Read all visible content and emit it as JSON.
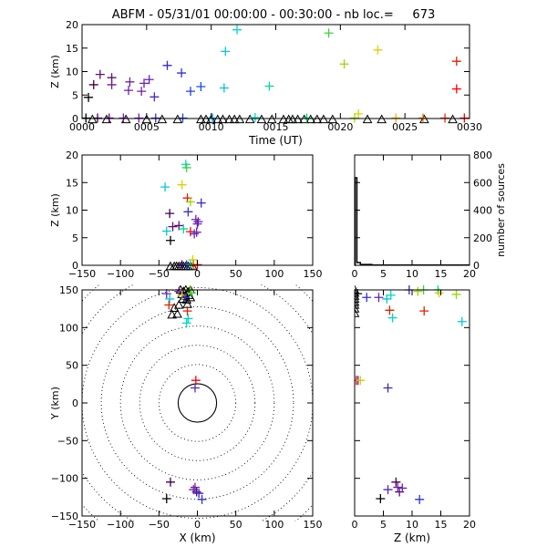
{
  "title": "ABFM - 05/31/01 00:00:00 - 00:30:00 - nb loc.=     673",
  "colors": {
    "axis": "#000000",
    "background": "#ffffff"
  },
  "marker_symbols": [
    "cross",
    "triangle"
  ],
  "chart_data": [
    {
      "id": "time-height",
      "type": "scatter",
      "xlabel": "Time (UT)",
      "ylabel": "Z (km)",
      "xlim": [
        0,
        30
      ],
      "ylim": [
        0,
        20
      ],
      "x_tick_labels": [
        "0000",
        "0005",
        "0010",
        "0015",
        "0020",
        "0025",
        "0030"
      ],
      "y_tick_labels": [
        "0",
        "5",
        "10",
        "15",
        "20"
      ],
      "color_encodes": "time",
      "points": [
        {
          "t": 0.5,
          "z": 4.5,
          "c": "#000000"
        },
        {
          "t": 0.9,
          "z": 7.2,
          "c": "#400040"
        },
        {
          "t": 1.4,
          "z": 9.4,
          "c": "#5c1070"
        },
        {
          "t": 2.3,
          "z": 8.7,
          "c": "#5c1070"
        },
        {
          "t": 2.3,
          "z": 7.2,
          "c": "#6a1a90"
        },
        {
          "t": 3.6,
          "z": 6.0,
          "c": "#7020a0"
        },
        {
          "t": 3.7,
          "z": 7.8,
          "c": "#7020a0"
        },
        {
          "t": 4.6,
          "z": 5.8,
          "c": "#7020b0"
        },
        {
          "t": 4.8,
          "z": 7.5,
          "c": "#6a20b8"
        },
        {
          "t": 5.2,
          "z": 8.3,
          "c": "#6a20b8"
        },
        {
          "t": 5.6,
          "z": 4.6,
          "c": "#5028c0"
        },
        {
          "t": 6.6,
          "z": 11.3,
          "c": "#3828c8"
        },
        {
          "t": 7.7,
          "z": 9.7,
          "c": "#3030d0"
        },
        {
          "t": 8.4,
          "z": 5.8,
          "c": "#2040e0"
        },
        {
          "t": 9.2,
          "z": 6.8,
          "c": "#1050e8"
        },
        {
          "t": 11.0,
          "z": 6.5,
          "c": "#00c0e0"
        },
        {
          "t": 11.1,
          "z": 14.3,
          "c": "#00c8d8"
        },
        {
          "t": 12.0,
          "z": 18.9,
          "c": "#00d8d0"
        },
        {
          "t": 14.5,
          "z": 6.9,
          "c": "#00d8a0"
        },
        {
          "t": 19.1,
          "z": 18.2,
          "c": "#40d040"
        },
        {
          "t": 20.3,
          "z": 11.6,
          "c": "#98d800"
        },
        {
          "t": 21.4,
          "z": 1.0,
          "c": "#c8d800"
        },
        {
          "t": 22.9,
          "z": 14.6,
          "c": "#e0d000"
        },
        {
          "t": 29.0,
          "z": 12.2,
          "c": "#e02000"
        },
        {
          "t": 29.0,
          "z": 6.3,
          "c": "#ff0000"
        },
        {
          "t": 0.3,
          "z": 0.1,
          "c": "#000000"
        },
        {
          "t": 1.2,
          "z": 0.1,
          "c": "#400050"
        },
        {
          "t": 2.1,
          "z": 0.1,
          "c": "#600080"
        },
        {
          "t": 3.2,
          "z": 0.1,
          "c": "#7020a0"
        },
        {
          "t": 4.4,
          "z": 0.1,
          "c": "#6a20b8"
        },
        {
          "t": 5.7,
          "z": 0.1,
          "c": "#4028c8"
        },
        {
          "t": 7.8,
          "z": 0.1,
          "c": "#2040e0"
        },
        {
          "t": 10.1,
          "z": 0.1,
          "c": "#00a0e8"
        },
        {
          "t": 13.4,
          "z": 0.2,
          "c": "#00d8c0"
        },
        {
          "t": 17.4,
          "z": 0.1,
          "c": "#00d060"
        },
        {
          "t": 21.1,
          "z": 0.1,
          "c": "#a8d800"
        },
        {
          "t": 24.3,
          "z": 0.1,
          "c": "#f0b000"
        },
        {
          "t": 26.4,
          "z": 0.1,
          "c": "#f07000"
        },
        {
          "t": 28.1,
          "z": 0.1,
          "c": "#f03000"
        },
        {
          "t": 29.6,
          "z": 0.1,
          "c": "#ff0000"
        }
      ],
      "triangles": [
        {
          "t": 0.8,
          "z": -0.2
        },
        {
          "t": 1.9,
          "z": -0.2
        },
        {
          "t": 3.4,
          "z": -0.2
        },
        {
          "t": 5.0,
          "z": -0.2
        },
        {
          "t": 6.2,
          "z": -0.2
        },
        {
          "t": 7.4,
          "z": -0.2
        },
        {
          "t": 9.2,
          "z": -0.2
        },
        {
          "t": 9.6,
          "z": -0.2
        },
        {
          "t": 10.0,
          "z": -0.2
        },
        {
          "t": 10.5,
          "z": -0.2
        },
        {
          "t": 10.9,
          "z": -0.2
        },
        {
          "t": 11.4,
          "z": -0.2
        },
        {
          "t": 11.8,
          "z": -0.2
        },
        {
          "t": 12.2,
          "z": -0.2
        },
        {
          "t": 13.0,
          "z": -0.2
        },
        {
          "t": 13.9,
          "z": -0.2
        },
        {
          "t": 14.7,
          "z": -0.2
        },
        {
          "t": 15.6,
          "z": -0.2
        },
        {
          "t": 16.0,
          "z": -0.2
        },
        {
          "t": 16.3,
          "z": -0.2
        },
        {
          "t": 16.7,
          "z": -0.2
        },
        {
          "t": 17.2,
          "z": -0.2
        },
        {
          "t": 17.7,
          "z": -0.2
        },
        {
          "t": 18.2,
          "z": -0.2
        },
        {
          "t": 18.7,
          "z": -0.2
        },
        {
          "t": 19.4,
          "z": -0.2
        },
        {
          "t": 22.1,
          "z": -0.2
        },
        {
          "t": 23.2,
          "z": -0.2
        },
        {
          "t": 26.5,
          "z": -0.2
        },
        {
          "t": 28.7,
          "z": -0.2
        }
      ]
    },
    {
      "id": "x-height",
      "type": "scatter",
      "xlabel": "",
      "ylabel": "Z (km)",
      "xlim": [
        -150,
        150
      ],
      "ylim": [
        0,
        20
      ],
      "x_tick_labels": [
        "−150",
        "−100",
        "−50",
        "0",
        "50",
        "100",
        "150"
      ],
      "y_tick_labels": [
        "0",
        "5",
        "10",
        "15",
        "20"
      ],
      "points": [
        {
          "x": -36,
          "z": 9.4,
          "c": "#400050"
        },
        {
          "x": -35,
          "z": 4.5,
          "c": "#000000"
        },
        {
          "x": -32,
          "z": 7.0,
          "c": "#5c1070"
        },
        {
          "x": -40,
          "z": 6.2,
          "c": "#00c8c8"
        },
        {
          "x": -42,
          "z": 14.2,
          "c": "#00c8d8"
        },
        {
          "x": -24,
          "z": 7.2,
          "c": "#5c1070"
        },
        {
          "x": -20,
          "z": 14.6,
          "c": "#e0d000"
        },
        {
          "x": -15,
          "z": 18.3,
          "c": "#00d8c0"
        },
        {
          "x": -14,
          "z": 17.7,
          "c": "#40d040"
        },
        {
          "x": -13,
          "z": 12.2,
          "c": "#e02000"
        },
        {
          "x": -12,
          "z": 9.7,
          "c": "#3030d0"
        },
        {
          "x": -18,
          "z": 6.6,
          "c": "#00d8a0"
        },
        {
          "x": -9,
          "z": 11.5,
          "c": "#98d800"
        },
        {
          "x": -9,
          "z": 6.1,
          "c": "#ff0000"
        },
        {
          "x": -2,
          "z": 8.3,
          "c": "#6a20b8"
        },
        {
          "x": 1,
          "z": 7.9,
          "c": "#7020a0"
        },
        {
          "x": 0,
          "z": 7.5,
          "c": "#6a20b8"
        },
        {
          "x": -1,
          "z": 6.0,
          "c": "#7020b0"
        },
        {
          "x": -4,
          "z": 5.7,
          "c": "#6a20b8"
        },
        {
          "x": 5,
          "z": 11.3,
          "c": "#3828c8"
        },
        {
          "x": -6,
          "z": 1.0,
          "c": "#c8d800"
        },
        {
          "x": -20,
          "z": 0.1,
          "c": "#600080"
        },
        {
          "x": -14,
          "z": 0.1,
          "c": "#2040e0"
        },
        {
          "x": -9,
          "z": 0.1,
          "c": "#00d8c0"
        },
        {
          "x": -5,
          "z": 0.1,
          "c": "#f07000"
        },
        {
          "x": 0,
          "z": 0.1,
          "c": "#ff0000"
        }
      ],
      "triangles": [
        {
          "x": -35,
          "z": -0.2
        },
        {
          "x": -30,
          "z": -0.2
        },
        {
          "x": -27,
          "z": -0.2
        },
        {
          "x": -24,
          "z": -0.2
        },
        {
          "x": -21,
          "z": -0.2
        },
        {
          "x": -18,
          "z": -0.2
        },
        {
          "x": -15,
          "z": -0.2
        },
        {
          "x": -12,
          "z": -0.2
        },
        {
          "x": -9,
          "z": -0.2
        },
        {
          "x": -6,
          "z": -0.2
        }
      ]
    },
    {
      "id": "height-histogram",
      "type": "line",
      "xlabel": "",
      "ylabel": "number of sources",
      "xlim": [
        0,
        20
      ],
      "ylim": [
        0,
        800
      ],
      "x_tick_labels": [
        "0",
        "5",
        "10",
        "15",
        "20"
      ],
      "y_tick_labels": [
        "0",
        "200",
        "400",
        "600",
        "800"
      ],
      "series": [
        {
          "x": [
            0.0,
            0.1,
            0.1,
            0.4,
            0.4,
            1.0,
            1.0,
            3.0,
            3.0,
            20.0
          ],
          "y": [
            0,
            0,
            635,
            635,
            20,
            20,
            6,
            6,
            2,
            2
          ]
        }
      ]
    },
    {
      "id": "plan-view",
      "type": "scatter",
      "xlabel": "X (km)",
      "ylabel": "Y (km)",
      "xlim": [
        -150,
        150
      ],
      "ylim": [
        -150,
        150
      ],
      "x_tick_labels": [
        "−150",
        "−100",
        "−50",
        "0",
        "50",
        "100",
        "150"
      ],
      "y_tick_labels": [
        "−150",
        "−100",
        "−50",
        "0",
        "50",
        "100",
        "150"
      ],
      "range_rings_km": [
        25,
        50,
        75,
        100,
        125,
        150,
        175,
        200
      ],
      "points": [
        {
          "x": -40,
          "y": 145,
          "c": "#6a20b8"
        },
        {
          "x": -36,
          "y": 138,
          "c": "#00c8d8"
        },
        {
          "x": -37,
          "y": 130,
          "c": "#e02000"
        },
        {
          "x": -24,
          "y": 148,
          "c": "#7020a0"
        },
        {
          "x": -20,
          "y": 143,
          "c": "#e0d000"
        },
        {
          "x": -16,
          "y": 140,
          "c": "#3030d0"
        },
        {
          "x": -13,
          "y": 122,
          "c": "#e02000"
        },
        {
          "x": -12,
          "y": 112,
          "c": "#00d8c0"
        },
        {
          "x": -14,
          "y": 106,
          "c": "#00d8c0"
        },
        {
          "x": -9,
          "y": 150,
          "c": "#98d800"
        },
        {
          "x": -8,
          "y": 146,
          "c": "#40d040"
        },
        {
          "x": -2,
          "y": 30,
          "c": "#ff0000"
        },
        {
          "x": -3,
          "y": 20,
          "c": "#5028c0"
        },
        {
          "x": -35,
          "y": -105,
          "c": "#400050"
        },
        {
          "x": -40,
          "y": -127,
          "c": "#000000"
        },
        {
          "x": -5,
          "y": -115,
          "c": "#6a20b8"
        },
        {
          "x": -1,
          "y": -118,
          "c": "#5c1070"
        },
        {
          "x": 2,
          "y": -120,
          "c": "#3828c8"
        },
        {
          "x": 6,
          "y": -128,
          "c": "#3030d0"
        },
        {
          "x": -3,
          "y": -112,
          "c": "#7020a0"
        }
      ],
      "triangles": [
        {
          "x": -22,
          "y": 150
        },
        {
          "x": -18,
          "y": 148
        },
        {
          "x": -15,
          "y": 150
        },
        {
          "x": -12,
          "y": 147
        },
        {
          "x": -9,
          "y": 150
        },
        {
          "x": -20,
          "y": 144
        },
        {
          "x": -16,
          "y": 142
        },
        {
          "x": -11,
          "y": 143
        },
        {
          "x": -19,
          "y": 138
        },
        {
          "x": -14,
          "y": 137
        },
        {
          "x": -24,
          "y": 130
        },
        {
          "x": -30,
          "y": 126
        },
        {
          "x": -33,
          "y": 117
        },
        {
          "x": -26,
          "y": 118
        },
        {
          "x": -13,
          "y": 131
        },
        {
          "x": -9,
          "y": 140
        }
      ]
    },
    {
      "id": "height-y",
      "type": "scatter",
      "xlabel": "Z (km)",
      "ylabel": "",
      "xlim": [
        0,
        20
      ],
      "ylim": [
        -150,
        150
      ],
      "x_tick_labels": [
        "0",
        "5",
        "10",
        "15",
        "20"
      ],
      "y_tick_labels": [
        "−150",
        "−100",
        "−50",
        "0",
        "50",
        "100",
        "150"
      ],
      "points": [
        {
          "x": 0.5,
          "y": 145,
          "c": "#000000"
        },
        {
          "x": 2.1,
          "y": 140,
          "c": "#3030d0"
        },
        {
          "x": 4.2,
          "y": 140,
          "c": "#6a20b8"
        },
        {
          "x": 5.6,
          "y": 138,
          "c": "#00c8d8"
        },
        {
          "x": 6.3,
          "y": 143,
          "c": "#00d8c0"
        },
        {
          "x": 6.1,
          "y": 123,
          "c": "#e02000"
        },
        {
          "x": 6.6,
          "y": 113,
          "c": "#00d8c0"
        },
        {
          "x": 9.5,
          "y": 150,
          "c": "#3828c8"
        },
        {
          "x": 11.0,
          "y": 148,
          "c": "#98d800"
        },
        {
          "x": 12.0,
          "y": 150,
          "c": "#40d040"
        },
        {
          "x": 14.5,
          "y": 150,
          "c": "#00d8c0"
        },
        {
          "x": 14.7,
          "y": 146,
          "c": "#e0d000"
        },
        {
          "x": 17.7,
          "y": 144,
          "c": "#98d800"
        },
        {
          "x": 18.7,
          "y": 108,
          "c": "#00c8d8"
        },
        {
          "x": 12.1,
          "y": 122,
          "c": "#e02000"
        },
        {
          "x": 0.3,
          "y": 30,
          "c": "#ff0000"
        },
        {
          "x": 0.6,
          "y": 30,
          "c": "#6a20b8"
        },
        {
          "x": 1.0,
          "y": 30,
          "c": "#c8d800"
        },
        {
          "x": 5.8,
          "y": 20,
          "c": "#3828c8"
        },
        {
          "x": 4.5,
          "y": -127,
          "c": "#000000"
        },
        {
          "x": 5.8,
          "y": -115,
          "c": "#5028c0"
        },
        {
          "x": 7.2,
          "y": -105,
          "c": "#400050"
        },
        {
          "x": 7.5,
          "y": -112,
          "c": "#7020a0"
        },
        {
          "x": 7.8,
          "y": -118,
          "c": "#5c1070"
        },
        {
          "x": 8.3,
          "y": -113,
          "c": "#6a20b8"
        },
        {
          "x": 11.3,
          "y": -128,
          "c": "#3030d0"
        }
      ],
      "triangles": [
        {
          "x": 0.0,
          "y": 150
        },
        {
          "x": 0.0,
          "y": 146
        },
        {
          "x": 0.0,
          "y": 142
        },
        {
          "x": 0.0,
          "y": 138
        },
        {
          "x": 0.0,
          "y": 134
        },
        {
          "x": 0.0,
          "y": 130
        },
        {
          "x": 0.0,
          "y": 125
        },
        {
          "x": 0.0,
          "y": 119
        }
      ]
    }
  ]
}
